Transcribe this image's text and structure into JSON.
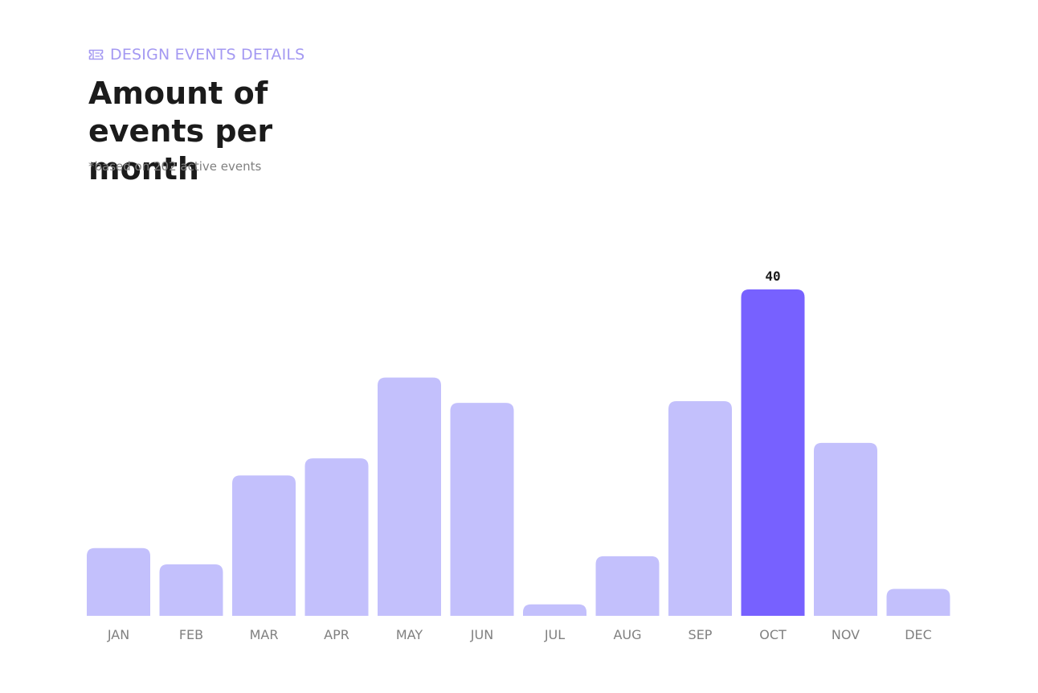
{
  "header": {
    "eyebrow_icon": "ticket-icon",
    "eyebrow": "DESIGN EVENTS DETAILS",
    "title": "Amount of events per month",
    "subtitle": "*based on 202 active events"
  },
  "colors": {
    "bar": "#c3c0fc",
    "bar_highlight": "#7761ff",
    "eyebrow": "#a499f2",
    "title": "#1b1b1b",
    "axis_label": "#808080"
  },
  "chart_data": {
    "type": "bar",
    "categories": [
      "JAN",
      "FEB",
      "MAR",
      "APR",
      "MAY",
      "JUN",
      "JUL",
      "AUG",
      "SEP",
      "OCT",
      "NOV",
      "DEC"
    ],
    "values": [
      8.3,
      6.3,
      17.2,
      19.3,
      29.2,
      26.1,
      1.4,
      7.3,
      26.3,
      40,
      21.2,
      3.3
    ],
    "highlight_category": "OCT",
    "data_labels": [
      {
        "category": "OCT",
        "text": "40"
      }
    ],
    "ylim": [
      0,
      40
    ],
    "grid": false,
    "legend": "none",
    "xlabel": "",
    "ylabel": ""
  }
}
